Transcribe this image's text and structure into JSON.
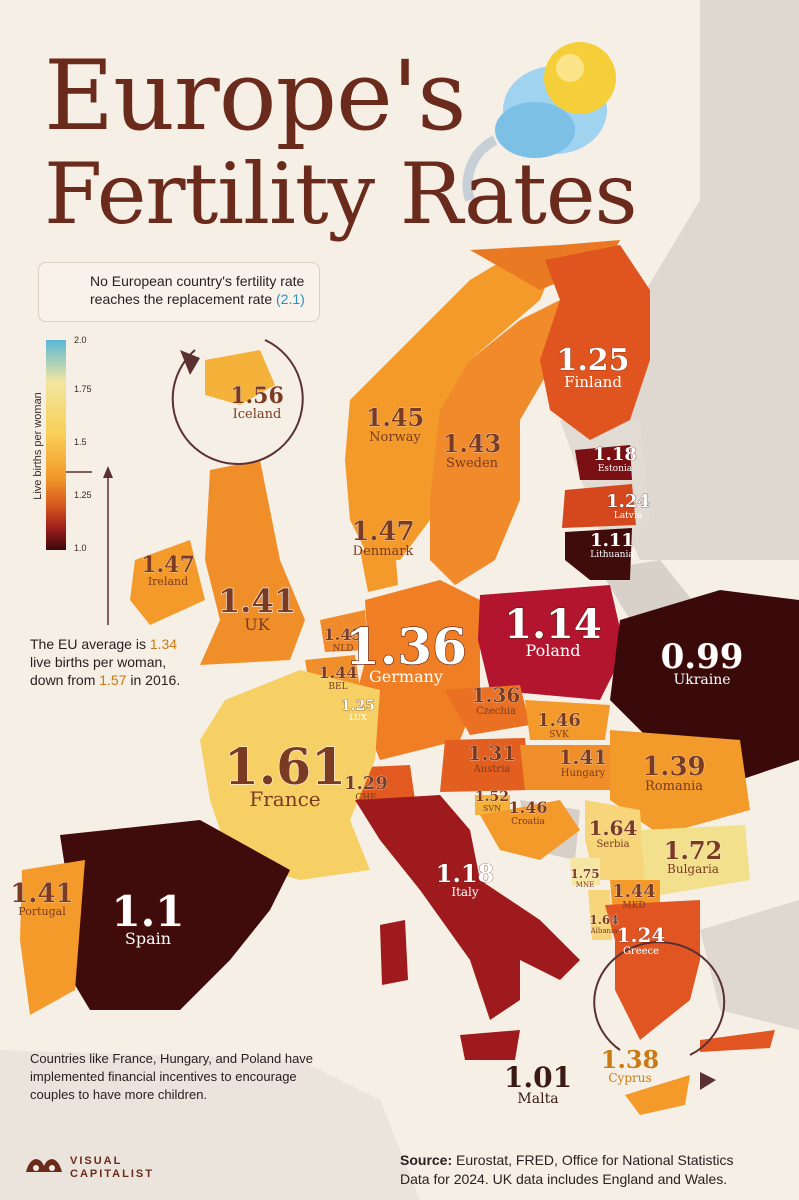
{
  "title": {
    "line1": "Europe's",
    "line2": "Fertility Rates"
  },
  "callout": {
    "line1": "No European country's fertility rate",
    "line2_prefix": "reaches the replacement rate ",
    "line2_value": "(2.1)"
  },
  "legend": {
    "title": "Live births per woman",
    "ticks": [
      "2.0",
      "1.75",
      "1.5",
      "1.25",
      "1.0"
    ],
    "colors": [
      "#5bb7d6",
      "#f2e6a0",
      "#f8cf57",
      "#f29a2a",
      "#d2531d",
      "#9b1b1d",
      "#3a0a0a"
    ]
  },
  "eu_note": {
    "line1_prefix": "The EU average is ",
    "value": "1.34",
    "line2": "live births per woman,",
    "line3_prefix": "down from ",
    "prev": "1.57",
    "line3_suffix": " in 2016."
  },
  "incentive_note": {
    "line1": "Countries like France, Hungary, and Poland have",
    "line2": "implemented financial incentives to encourage",
    "line3": "couples to have more children."
  },
  "source": {
    "label": "Source:",
    "line1": " Eurostat, FRED, Office for National Statistics",
    "line2": "Data for 2024. UK data includes England and Wales."
  },
  "brand": {
    "line1": "VISUAL",
    "line2": "CAPITALIST"
  },
  "countries": [
    {
      "name": "Finland",
      "value": "1.25"
    },
    {
      "name": "Iceland",
      "value": "1.56"
    },
    {
      "name": "Norway",
      "value": "1.45"
    },
    {
      "name": "Sweden",
      "value": "1.43"
    },
    {
      "name": "Estonia",
      "value": "1.18"
    },
    {
      "name": "Latvia",
      "value": "1.24"
    },
    {
      "name": "Lithuania",
      "value": "1.11"
    },
    {
      "name": "Denmark",
      "value": "1.47"
    },
    {
      "name": "Ireland",
      "value": "1.47"
    },
    {
      "name": "UK",
      "value": "1.41"
    },
    {
      "name": "Poland",
      "value": "1.14"
    },
    {
      "name": "Ukraine",
      "value": "0.99"
    },
    {
      "name": "NLD",
      "value": "1.43"
    },
    {
      "name": "BEL",
      "value": "1.44"
    },
    {
      "name": "LUX",
      "value": "1.25"
    },
    {
      "name": "Germany",
      "value": "1.36"
    },
    {
      "name": "Czechia",
      "value": "1.36"
    },
    {
      "name": "SVK",
      "value": "1.46"
    },
    {
      "name": "Austria",
      "value": "1.31"
    },
    {
      "name": "Hungary",
      "value": "1.41"
    },
    {
      "name": "Romania",
      "value": "1.39"
    },
    {
      "name": "France",
      "value": "1.61"
    },
    {
      "name": "CHE",
      "value": "1.29"
    },
    {
      "name": "SVN",
      "value": "1.52"
    },
    {
      "name": "Croatia",
      "value": "1.46"
    },
    {
      "name": "Serbia",
      "value": "1.64"
    },
    {
      "name": "Bulgaria",
      "value": "1.72"
    },
    {
      "name": "MNE",
      "value": "1.75"
    },
    {
      "name": "MKD",
      "value": "1.44"
    },
    {
      "name": "Albania",
      "value": "1.64"
    },
    {
      "name": "Greece",
      "value": "1.24"
    },
    {
      "name": "Italy",
      "value": "1.18"
    },
    {
      "name": "Portugal",
      "value": "1.41"
    },
    {
      "name": "Spain",
      "value": "1.1"
    },
    {
      "name": "Malta",
      "value": "1.01"
    },
    {
      "name": "Cyprus",
      "value": "1.38"
    }
  ]
}
